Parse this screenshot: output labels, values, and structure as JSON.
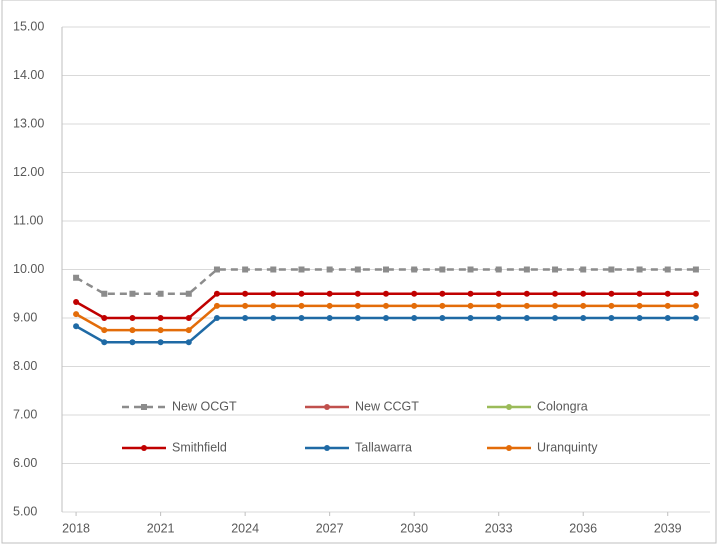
{
  "chart_data": {
    "type": "line",
    "x": [
      2018,
      2019,
      2020,
      2021,
      2022,
      2023,
      2024,
      2025,
      2026,
      2027,
      2028,
      2029,
      2030,
      2031,
      2032,
      2033,
      2034,
      2035,
      2036,
      2037,
      2038,
      2039,
      2040
    ],
    "xlim": [
      2017.5,
      2040.5
    ],
    "xticks": [
      2018,
      2021,
      2024,
      2027,
      2030,
      2033,
      2036,
      2039
    ],
    "ylim": [
      5,
      15
    ],
    "yticks": [
      {
        "value": 5,
        "label": "5.00"
      },
      {
        "value": 6,
        "label": "6.00"
      },
      {
        "value": 7,
        "label": "7.00"
      },
      {
        "value": 8,
        "label": "8.00"
      },
      {
        "value": 9,
        "label": "9.00"
      },
      {
        "value": 10,
        "label": "10.00"
      },
      {
        "value": 11,
        "label": "11.00"
      },
      {
        "value": 12,
        "label": "12.00"
      },
      {
        "value": 13,
        "label": "13.00"
      },
      {
        "value": 14,
        "label": "14.00"
      },
      {
        "value": 15,
        "label": "15.00"
      }
    ],
    "grid": true,
    "legend": "lower center",
    "series": [
      {
        "name": "New OCGT",
        "color": "#8c8c8c",
        "dashed": true,
        "marker": "square",
        "values": [
          9.83,
          9.5,
          9.5,
          9.5,
          9.5,
          10,
          10,
          10,
          10,
          10,
          10,
          10,
          10,
          10,
          10,
          10,
          10,
          10,
          10,
          10,
          10,
          10,
          10
        ]
      },
      {
        "name": "New CCGT",
        "color": "#c0504d",
        "marker": "circle",
        "values": [
          null,
          null,
          null,
          null,
          null,
          null,
          null,
          null,
          null,
          null,
          null,
          null,
          null,
          null,
          null,
          null,
          null,
          null,
          null,
          null,
          null,
          null,
          null
        ]
      },
      {
        "name": "Colongra",
        "color": "#9bbb59",
        "marker": "circle",
        "values": [
          null,
          null,
          null,
          null,
          null,
          null,
          null,
          null,
          null,
          null,
          null,
          null,
          null,
          null,
          null,
          null,
          null,
          null,
          null,
          null,
          null,
          null,
          null
        ]
      },
      {
        "name": "Smithfield",
        "color": "#c00000",
        "marker": "circle",
        "values": [
          9.33,
          9,
          9,
          9,
          9,
          9.5,
          9.5,
          9.5,
          9.5,
          9.5,
          9.5,
          9.5,
          9.5,
          9.5,
          9.5,
          9.5,
          9.5,
          9.5,
          9.5,
          9.5,
          9.5,
          9.5,
          9.5
        ]
      },
      {
        "name": "Tallawarra",
        "color": "#1f6aa5",
        "marker": "circle",
        "values": [
          8.83,
          8.5,
          8.5,
          8.5,
          8.5,
          9,
          9,
          9,
          9,
          9,
          9,
          9,
          9,
          9,
          9,
          9,
          9,
          9,
          9,
          9,
          9,
          9,
          9
        ]
      },
      {
        "name": "Uranquinty",
        "color": "#e36c09",
        "marker": "circle",
        "values": [
          9.08,
          8.75,
          8.75,
          8.75,
          8.75,
          9.25,
          9.25,
          9.25,
          9.25,
          9.25,
          9.25,
          9.25,
          9.25,
          9.25,
          9.25,
          9.25,
          9.25,
          9.25,
          9.25,
          9.25,
          9.25,
          9.25,
          9.25
        ]
      }
    ]
  }
}
